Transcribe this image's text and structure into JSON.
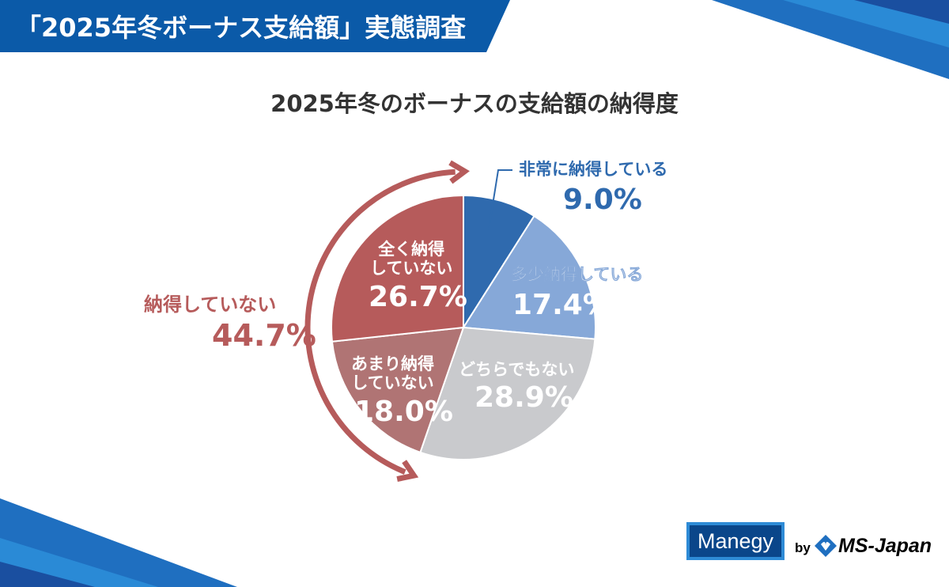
{
  "header": {
    "banner": "「2025年冬ボーナス支給額」実態調査"
  },
  "chart_data": {
    "type": "pie",
    "title": "2025年冬のボーナスの支給額の納得度",
    "slices": [
      {
        "label": "非常に納得している",
        "value": 9.0,
        "display": "9.0%",
        "color": "#2f6aae"
      },
      {
        "label": "多少納得している",
        "value": 17.4,
        "display": "17.4%",
        "color": "#86a8d8"
      },
      {
        "label": "どちらでもない",
        "value": 28.9,
        "display": "28.9%",
        "color": "#c9cacd"
      },
      {
        "label_lines": [
          "あまり納得",
          "していない"
        ],
        "value": 18.0,
        "display": "18.0%",
        "color": "#b07474"
      },
      {
        "label_lines": [
          "全く納得",
          "していない"
        ],
        "value": 26.7,
        "display": "26.7%",
        "color": "#b65b5b"
      }
    ],
    "group": {
      "label": "納得していない",
      "display": "44.7%",
      "color": "#b65b5b"
    }
  },
  "footer": {
    "logo": "Manegy",
    "by": "by",
    "company": "MS-Japan"
  }
}
